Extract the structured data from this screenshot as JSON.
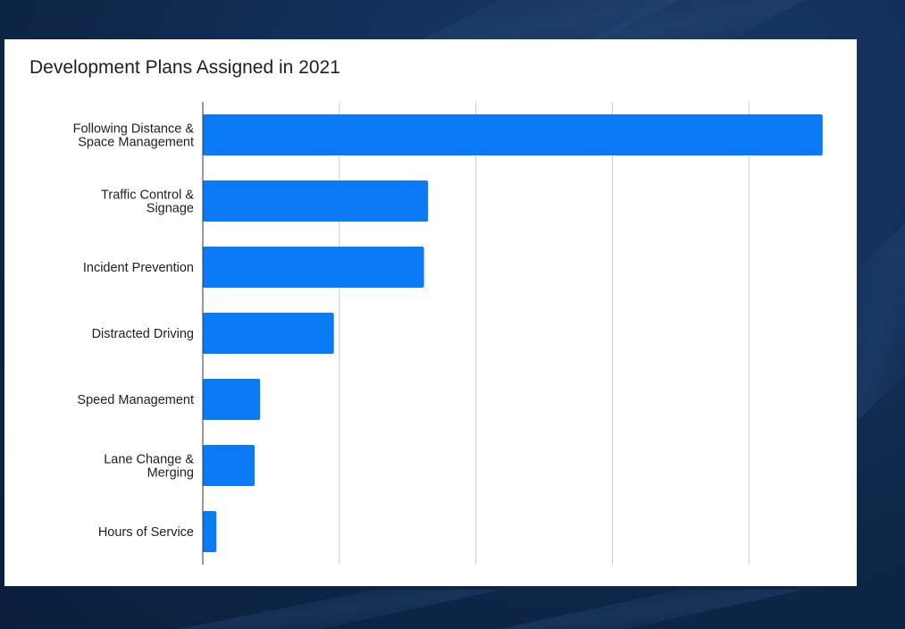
{
  "chart_data": {
    "type": "bar",
    "orientation": "horizontal",
    "title": "Development Plans Assigned in 2021",
    "xlabel": "",
    "ylabel": "",
    "categories": [
      [
        "Following Distance &",
        "Space Management"
      ],
      [
        "Traffic Control &",
        "Signage"
      ],
      [
        "Incident Prevention"
      ],
      [
        "Distracted Driving"
      ],
      [
        "Speed Management"
      ],
      [
        "Lane Change &",
        "Merging"
      ],
      [
        "Hours of Service"
      ]
    ],
    "values": [
      45.4,
      16.5,
      16.2,
      9.6,
      4.2,
      3.8,
      1.0
    ],
    "xlim": [
      0,
      46
    ],
    "x_gridlines": [
      0,
      10,
      20,
      30,
      40
    ],
    "x_tick_labels_shown": false,
    "grid": true,
    "legend": "none",
    "bar_color": "#0b7bf5",
    "grid_color": "#cccccc",
    "axis_color": "#333333"
  },
  "colors": {
    "background": "#0d2647",
    "card": "#ffffff",
    "text": "#1f1f1f"
  }
}
